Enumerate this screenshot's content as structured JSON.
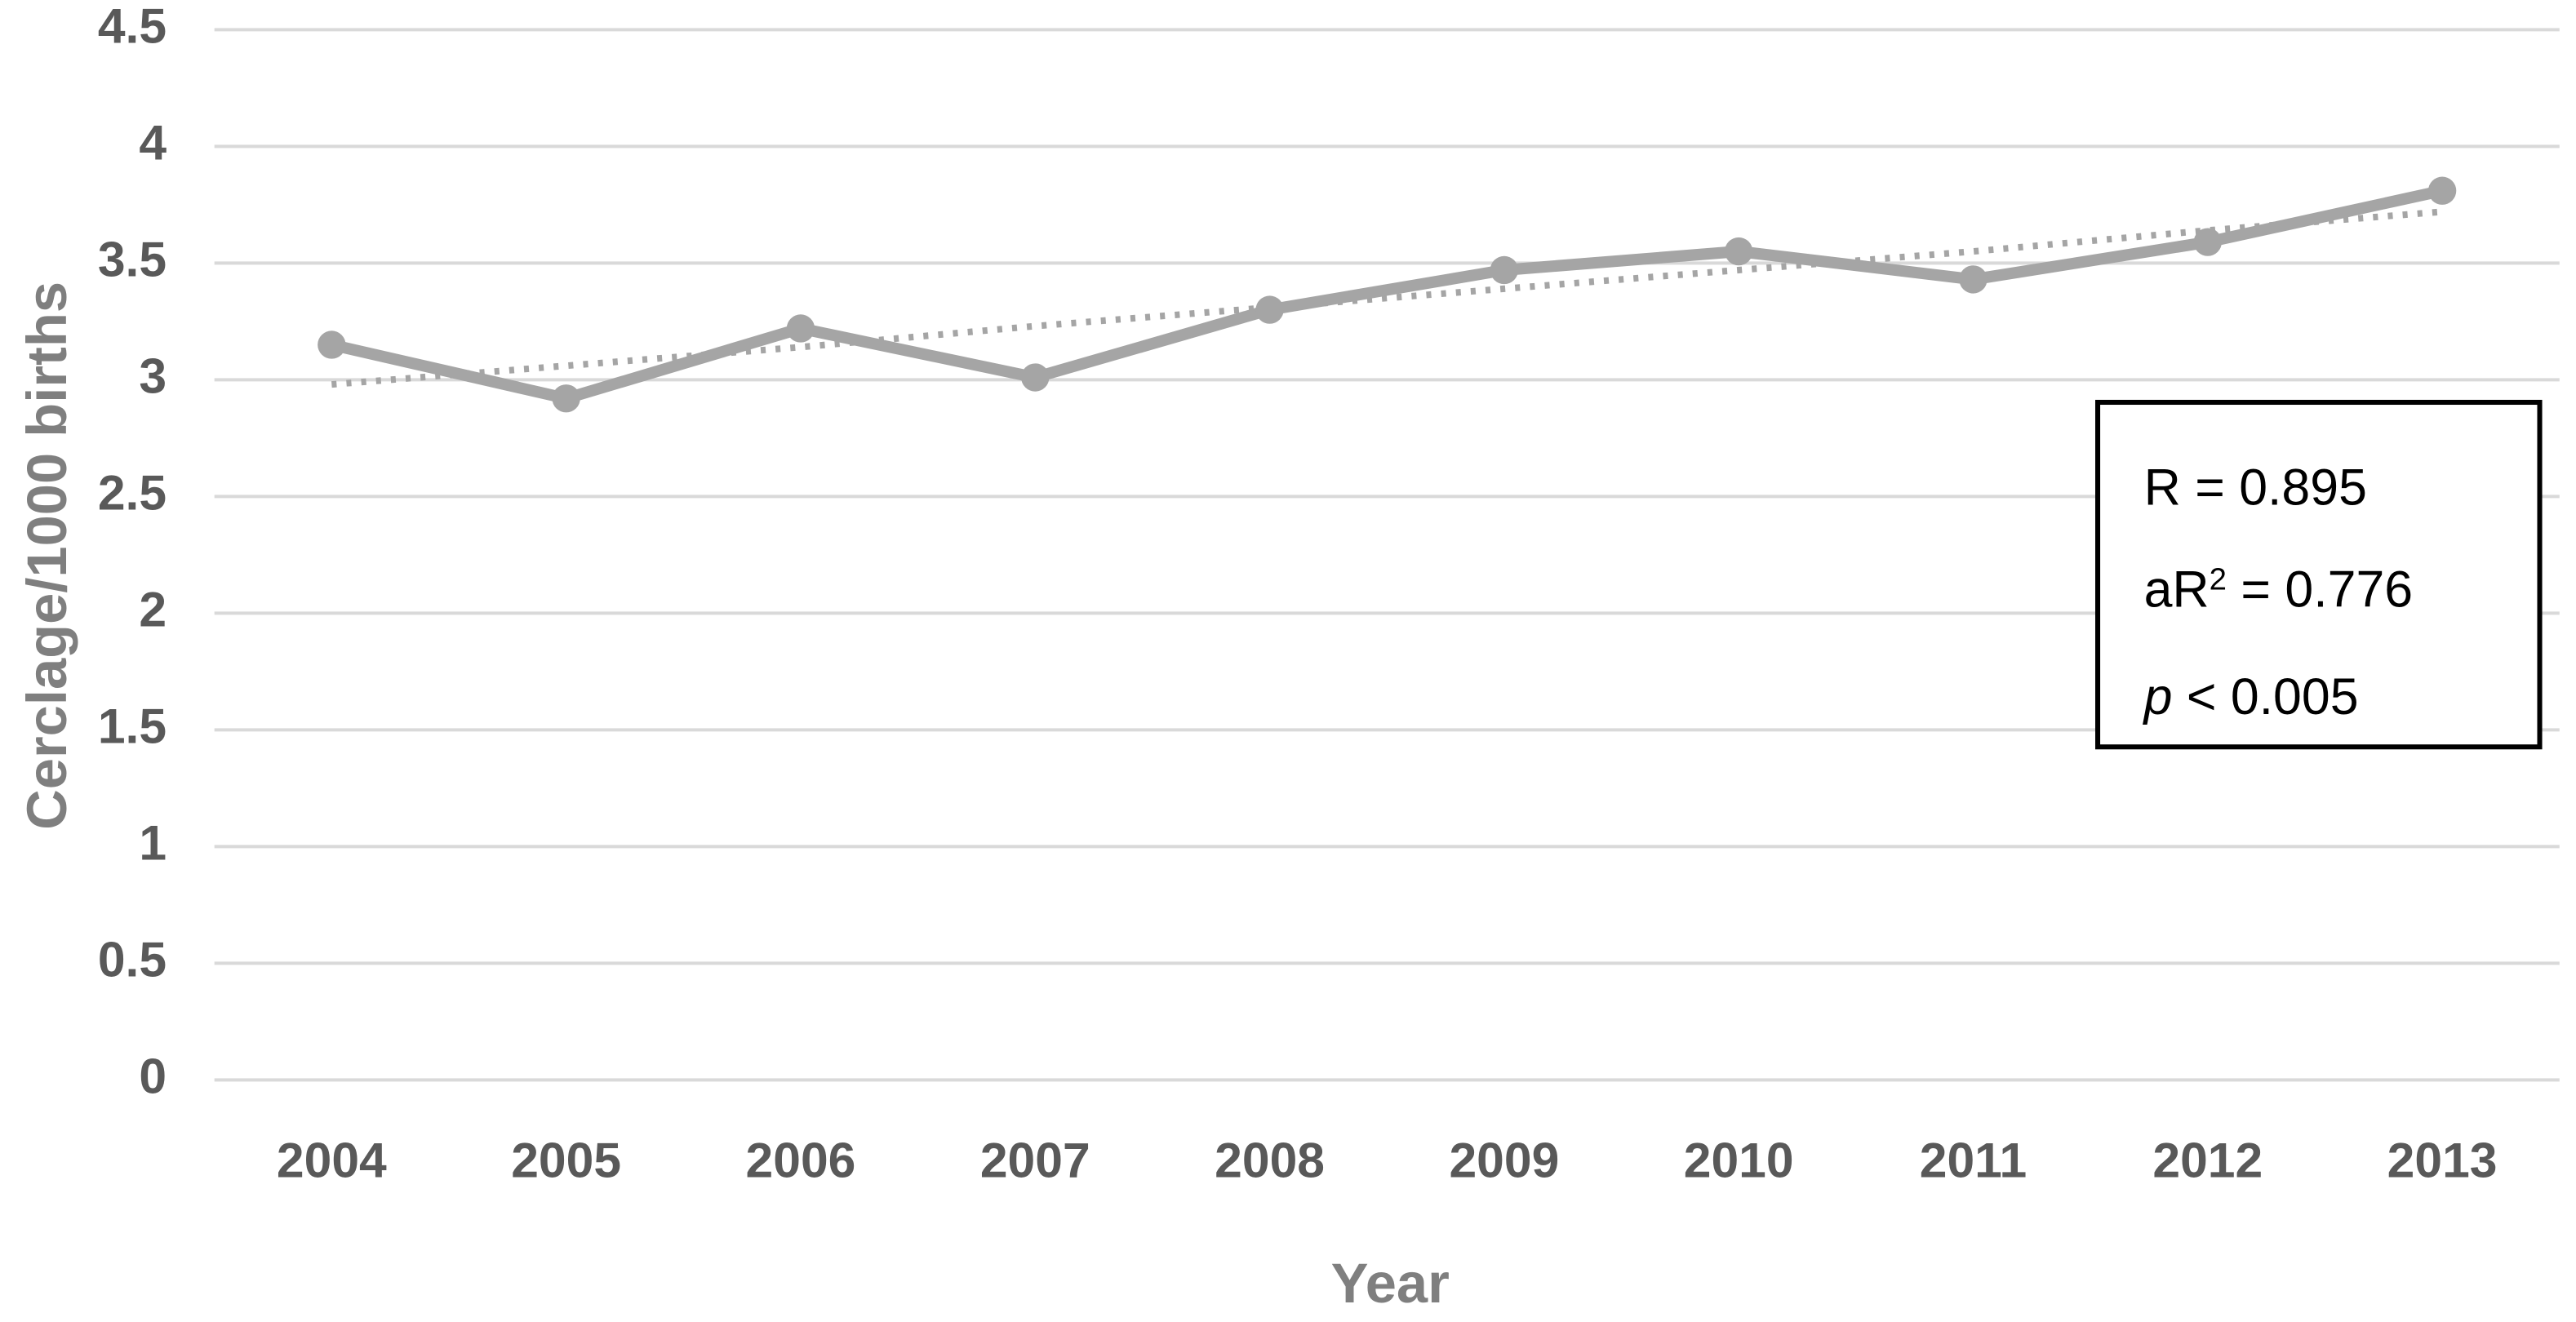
{
  "chart_data": {
    "type": "line",
    "y_label": "Cerclage/1000 births",
    "x_label": "Year",
    "categories": [
      "2004",
      "2005",
      "2006",
      "2007",
      "2008",
      "2009",
      "2010",
      "2011",
      "2012",
      "2013"
    ],
    "series": [
      {
        "color": "#a5a5a5",
        "style": "solid",
        "markers": true,
        "values": [
          3.15,
          2.92,
          3.22,
          3.01,
          3.3,
          3.47,
          3.55,
          3.43,
          3.59,
          3.81
        ]
      },
      {
        "color": "#a5a5a5",
        "style": "dotted",
        "markers": false,
        "values": [
          2.98,
          3.06,
          3.14,
          3.23,
          3.31,
          3.39,
          3.47,
          3.55,
          3.64,
          3.72
        ]
      }
    ],
    "ylim": [
      0,
      4.5
    ],
    "yticks": [
      0,
      0.5,
      1,
      1.5,
      2,
      2.5,
      3,
      3.5,
      4,
      4.5
    ],
    "grid": true,
    "annotation_lines": [
      [
        "R = 0.895"
      ],
      [
        "aR",
        "2",
        " = 0.776"
      ],
      [
        "p",
        " < 0.005"
      ]
    ]
  }
}
